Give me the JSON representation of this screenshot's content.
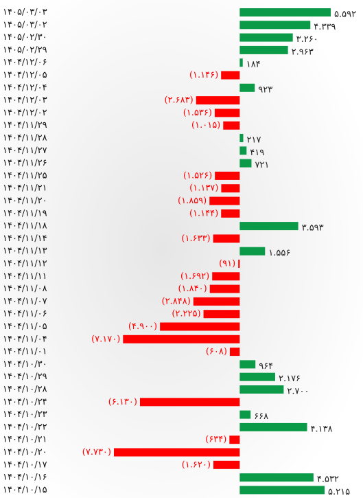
{
  "chart_data": {
    "type": "bar",
    "orientation": "horizontal",
    "categories": [
      "۱۴۰۵/۰۳/۰۳",
      "۱۴۰۵/۰۳/۰۲",
      "۱۴۰۵/۰۲/۳۰",
      "۱۴۰۵/۰۲/۲۹",
      "۱۴۰۴/۱۲/۰۶",
      "۱۴۰۴/۱۲/۰۵",
      "۱۴۰۴/۱۲/۰۴",
      "۱۴۰۴/۱۲/۰۳",
      "۱۴۰۴/۱۲/۰۲",
      "۱۴۰۴/۱۱/۲۹",
      "۱۴۰۴/۱۱/۲۸",
      "۱۴۰۴/۱۱/۲۷",
      "۱۴۰۴/۱۱/۲۶",
      "۱۴۰۴/۱۱/۲۵",
      "۱۴۰۴/۱۱/۲۱",
      "۱۴۰۴/۱۱/۲۰",
      "۱۴۰۴/۱۱/۱۹",
      "۱۴۰۴/۱۱/۱۸",
      "۱۴۰۴/۱۱/۱۴",
      "۱۴۰۴/۱۱/۱۳",
      "۱۴۰۴/۱۱/۱۲",
      "۱۴۰۴/۱۱/۱۱",
      "۱۴۰۴/۱۱/۰۸",
      "۱۴۰۴/۱۱/۰۷",
      "۱۴۰۴/۱۱/۰۶",
      "۱۴۰۴/۱۱/۰۵",
      "۱۴۰۴/۱۱/۰۴",
      "۱۴۰۴/۱۱/۰۱",
      "۱۴۰۴/۱۰/۳۰",
      "۱۴۰۴/۱۰/۲۹",
      "۱۴۰۴/۱۰/۲۸",
      "۱۴۰۴/۱۰/۲۴",
      "۱۴۰۴/۱۰/۲۳",
      "۱۴۰۴/۱۰/۲۲",
      "۱۴۰۴/۱۰/۲۱",
      "۱۴۰۴/۱۰/۲۰",
      "۱۴۰۴/۱۰/۱۷",
      "۱۴۰۴/۱۰/۱۶",
      "۱۴۰۴/۱۰/۱۵"
    ],
    "values": [
      5592,
      4339,
      3260,
      2963,
      184,
      -1146,
      923,
      -2683,
      -1536,
      -1015,
      217,
      419,
      721,
      -1526,
      -1137,
      -1859,
      -1144,
      3593,
      -1633,
      1556,
      -91,
      -1692,
      -1840,
      -2848,
      -2225,
      -4900,
      -7170,
      -608,
      964,
      2176,
      2700,
      -6130,
      668,
      4138,
      -634,
      -7730,
      -1620,
      4532,
      5215
    ],
    "value_labels": [
      "۵.۵۹۲",
      "۴.۳۳۹",
      "۳.۲۶۰",
      "۲.۹۶۳",
      "۱۸۴",
      "(۱.۱۴۶)",
      "۹۲۳",
      "(۲.۶۸۳)",
      "(۱.۵۳۶)",
      "(۱.۰۱۵)",
      "۲۱۷",
      "۴۱۹",
      "۷۲۱",
      "(۱.۵۲۶)",
      "(۱.۱۳۷)",
      "(۱.۸۵۹)",
      "(۱.۱۴۴)",
      "۳.۵۹۳",
      "(۱.۶۳۳)",
      "۱.۵۵۶",
      "(۹۱)",
      "(۱.۶۹۲)",
      "(۱.۸۴۰)",
      "(۲.۸۴۸)",
      "(۲.۲۲۵)",
      "(۴.۹۰۰)",
      "(۷.۱۷۰)",
      "(۶۰۸)",
      "۹۶۴",
      "۲.۱۷۶",
      "۲.۷۰۰",
      "(۶.۱۳۰)",
      "۶۶۸",
      "۴.۱۳۸",
      "(۶۳۴)",
      "(۷.۷۳۰)",
      "(۱.۶۲۰)",
      "۴.۵۳۲",
      "۵.۲۱۵"
    ],
    "positive_color": "#0a9a48",
    "negative_color": "#ff0000",
    "xlim": [
      -7730,
      5592
    ]
  }
}
